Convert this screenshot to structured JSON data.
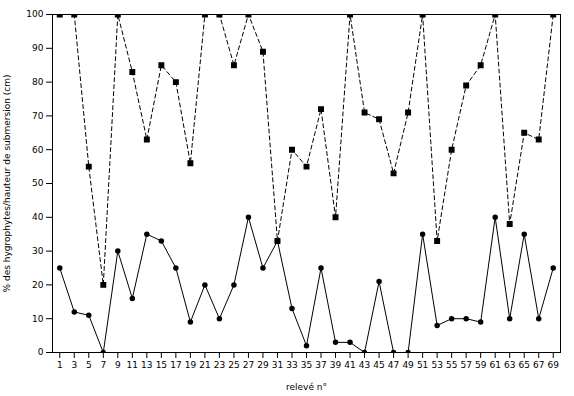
{
  "chart_data": {
    "type": "line",
    "x": [
      1,
      3,
      5,
      7,
      9,
      11,
      13,
      15,
      17,
      19,
      21,
      23,
      25,
      27,
      29,
      31,
      33,
      35,
      37,
      39,
      41,
      43,
      45,
      47,
      49,
      51,
      53,
      55,
      57,
      59,
      61,
      63,
      65,
      67,
      69
    ],
    "series": [
      {
        "color": "#000000",
        "marker": "circle",
        "line_style": "solid",
        "values": [
          25,
          12,
          11,
          0,
          30,
          16,
          35,
          33,
          25,
          9,
          20,
          10,
          20,
          40,
          25,
          33,
          13,
          2,
          25,
          3,
          3,
          0,
          21,
          0,
          0,
          35,
          8,
          10,
          10,
          9,
          40,
          10,
          35,
          10,
          25
        ]
      },
      {
        "color": "#000000",
        "marker": "square",
        "line_style": "dashed",
        "values": [
          100,
          100,
          55,
          20,
          100,
          83,
          63,
          85,
          80,
          56,
          100,
          100,
          85,
          100,
          89,
          33,
          60,
          55,
          72,
          40,
          100,
          71,
          69,
          53,
          71,
          100,
          33,
          60,
          79,
          85,
          100,
          38,
          65,
          63,
          100
        ]
      }
    ],
    "xlabel": "relevé n°",
    "ylabel": "% des hygrophytes/hauteur de submersion (cm)",
    "xlim": [
      0,
      70
    ],
    "ylim": [
      0,
      100
    ],
    "xticks": [
      1,
      3,
      5,
      7,
      9,
      11,
      13,
      15,
      17,
      19,
      21,
      23,
      25,
      27,
      29,
      31,
      33,
      35,
      37,
      39,
      41,
      43,
      45,
      47,
      49,
      51,
      53,
      55,
      57,
      59,
      61,
      63,
      65,
      67,
      69
    ],
    "yticks": [
      0,
      10,
      20,
      30,
      40,
      50,
      60,
      70,
      80,
      90,
      100
    ],
    "grid": false
  }
}
